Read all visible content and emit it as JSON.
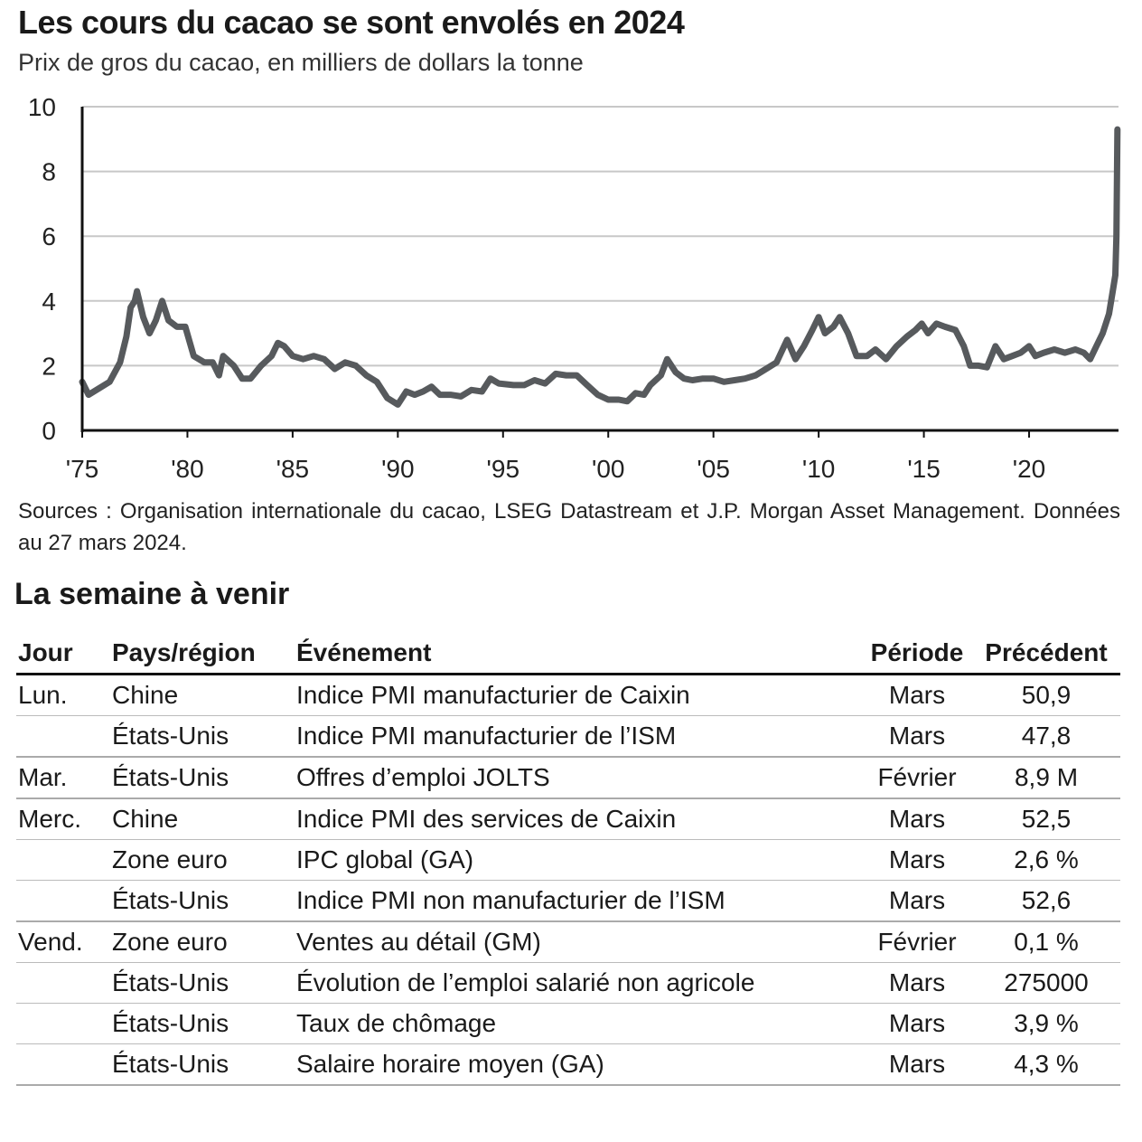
{
  "title": "Les cours du cacao se sont envolés en 2024",
  "subtitle": "Prix de gros du cacao, en milliers de dollars la tonne",
  "sources": "Sources : Organisation internationale du cacao, LSEG Datastream et J.P. Morgan Asset Management. Données au 27 mars 2024.",
  "chart_data": {
    "type": "line",
    "title": "Les cours du cacao se sont envolés en 2024",
    "ylabel": "Prix de gros du cacao, en milliers de dollars la tonne",
    "xlim": [
      1975,
      2024.25
    ],
    "ylim": [
      0,
      10
    ],
    "grid": true,
    "line_color": "#575a5d",
    "x_ticks": [
      1975,
      1980,
      1985,
      1990,
      1995,
      2000,
      2005,
      2010,
      2015,
      2020
    ],
    "x_tick_labels": [
      "'75",
      "'80",
      "'85",
      "'90",
      "'95",
      "'00",
      "'05",
      "'10",
      "'15",
      "'20"
    ],
    "y_ticks": [
      0,
      2,
      4,
      6,
      8,
      10
    ],
    "y_tick_labels": [
      "0",
      "2",
      "4",
      "6",
      "8",
      "10"
    ],
    "x": [
      1975.0,
      1975.3,
      1975.8,
      1976.3,
      1976.8,
      1977.1,
      1977.3,
      1977.5,
      1977.6,
      1977.9,
      1978.2,
      1978.5,
      1978.8,
      1979.1,
      1979.5,
      1979.9,
      1980.3,
      1980.8,
      1981.2,
      1981.5,
      1981.7,
      1982.2,
      1982.6,
      1983.0,
      1983.5,
      1984.0,
      1984.3,
      1984.6,
      1985.0,
      1985.5,
      1986.0,
      1986.5,
      1987.0,
      1987.5,
      1988.0,
      1988.5,
      1989.0,
      1989.5,
      1990.0,
      1990.4,
      1990.8,
      1991.2,
      1991.6,
      1992.0,
      1992.5,
      1993.0,
      1993.5,
      1994.0,
      1994.4,
      1994.8,
      1995.5,
      1996.0,
      1996.5,
      1997.0,
      1997.5,
      1998.0,
      1998.5,
      1999.0,
      1999.5,
      2000.0,
      2000.5,
      2000.9,
      2001.3,
      2001.7,
      2002.0,
      2002.5,
      2002.8,
      2003.2,
      2003.6,
      2004.0,
      2004.5,
      2005.0,
      2005.5,
      2006.0,
      2006.5,
      2007.0,
      2007.5,
      2008.0,
      2008.5,
      2008.9,
      2009.3,
      2009.7,
      2010.0,
      2010.3,
      2010.7,
      2011.0,
      2011.4,
      2011.8,
      2012.3,
      2012.7,
      2013.2,
      2013.7,
      2014.2,
      2014.6,
      2014.9,
      2015.2,
      2015.6,
      2016.0,
      2016.5,
      2016.9,
      2017.2,
      2017.6,
      2018.0,
      2018.4,
      2018.8,
      2019.2,
      2019.6,
      2020.0,
      2020.3,
      2020.7,
      2021.2,
      2021.7,
      2022.2,
      2022.6,
      2022.9,
      2023.2,
      2023.5,
      2023.8,
      2024.0,
      2024.1,
      2024.15,
      2024.2
    ],
    "y": [
      1.5,
      1.1,
      1.3,
      1.5,
      2.1,
      2.9,
      3.8,
      4.0,
      4.3,
      3.5,
      3.0,
      3.4,
      4.0,
      3.4,
      3.2,
      3.2,
      2.3,
      2.1,
      2.1,
      1.7,
      2.3,
      2.0,
      1.6,
      1.6,
      2.0,
      2.3,
      2.7,
      2.6,
      2.3,
      2.2,
      2.3,
      2.2,
      1.9,
      2.1,
      2.0,
      1.7,
      1.5,
      1.0,
      0.8,
      1.2,
      1.1,
      1.2,
      1.35,
      1.1,
      1.1,
      1.05,
      1.25,
      1.2,
      1.6,
      1.45,
      1.4,
      1.4,
      1.55,
      1.45,
      1.75,
      1.7,
      1.7,
      1.4,
      1.1,
      0.95,
      0.95,
      0.9,
      1.15,
      1.1,
      1.4,
      1.7,
      2.2,
      1.8,
      1.6,
      1.55,
      1.6,
      1.6,
      1.5,
      1.55,
      1.6,
      1.7,
      1.9,
      2.1,
      2.8,
      2.2,
      2.6,
      3.1,
      3.5,
      3.0,
      3.2,
      3.5,
      3.0,
      2.3,
      2.3,
      2.5,
      2.2,
      2.6,
      2.9,
      3.1,
      3.3,
      3.0,
      3.3,
      3.2,
      3.1,
      2.6,
      2.0,
      2.0,
      1.95,
      2.6,
      2.2,
      2.3,
      2.4,
      2.6,
      2.3,
      2.4,
      2.5,
      2.4,
      2.5,
      2.4,
      2.2,
      2.6,
      3.0,
      3.6,
      4.4,
      4.8,
      6.0,
      9.3
    ]
  },
  "week": {
    "title": "La semaine à venir",
    "headers": {
      "day": "Jour",
      "country": "Pays/région",
      "event": "Événement",
      "period": "Période",
      "previous": "Précédent"
    },
    "rows": [
      {
        "day": "Lun.",
        "country": "Chine",
        "event": "Indice PMI manufacturier de Caixin",
        "period": "Mars",
        "previous": "50,9"
      },
      {
        "day": "",
        "country": "États-Unis",
        "event": "Indice PMI manufacturier de l’ISM",
        "period": "Mars",
        "previous": "47,8"
      },
      {
        "day": "Mar.",
        "country": "États-Unis",
        "event": "Offres d’emploi JOLTS",
        "period": "Février",
        "previous": "8,9 M"
      },
      {
        "day": "Merc.",
        "country": "Chine",
        "event": "Indice PMI des services de Caixin",
        "period": "Mars",
        "previous": "52,5"
      },
      {
        "day": "",
        "country": "Zone euro",
        "event": "IPC global (GA)",
        "period": "Mars",
        "previous": "2,6 %"
      },
      {
        "day": "",
        "country": "États-Unis",
        "event": "Indice PMI non manufacturier de l’ISM",
        "period": "Mars",
        "previous": "52,6"
      },
      {
        "day": "Vend.",
        "country": "Zone euro",
        "event": "Ventes au détail (GM)",
        "period": "Février",
        "previous": "0,1 %"
      },
      {
        "day": "",
        "country": "États-Unis",
        "event": "Évolution de l’emploi salarié non agricole",
        "period": "Mars",
        "previous": "275000"
      },
      {
        "day": "",
        "country": "États-Unis",
        "event": "Taux de chômage",
        "period": "Mars",
        "previous": "3,9 %"
      },
      {
        "day": "",
        "country": "États-Unis",
        "event": "Salaire horaire moyen (GA)",
        "period": "Mars",
        "previous": "4,3 %"
      }
    ]
  }
}
